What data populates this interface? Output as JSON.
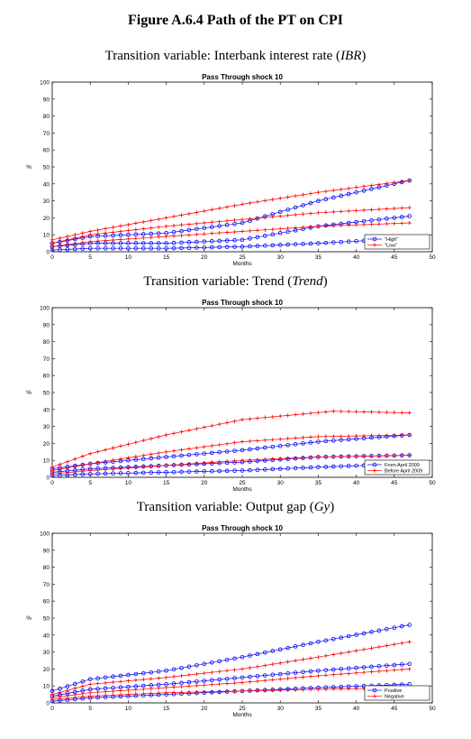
{
  "figure": {
    "title": "Figure A.6.4 Path of the PT on CPI",
    "panels": [
      {
        "subtitle_prefix": "Transition variable: Interbank interest rate (",
        "subtitle_var": "IBR",
        "subtitle_suffix": ")"
      },
      {
        "subtitle_prefix": "Transition variable: Trend (",
        "subtitle_var": "Trend",
        "subtitle_suffix": ")"
      },
      {
        "subtitle_prefix": "Transition variable: Output gap (",
        "subtitle_var": "Gy",
        "subtitle_suffix": ")"
      }
    ]
  },
  "colors": {
    "blue": "#0000ff",
    "red": "#ff0000",
    "axis": "#000000"
  },
  "chart_data": [
    {
      "type": "line",
      "title": "Pass Through shock 10",
      "xlabel": "Months",
      "ylabel": "%",
      "xlim": [
        0,
        50
      ],
      "ylim": [
        0,
        100
      ],
      "xticks": [
        0,
        5,
        10,
        15,
        20,
        25,
        30,
        35,
        40,
        45,
        50
      ],
      "yticks": [
        0,
        10,
        20,
        30,
        40,
        50,
        60,
        70,
        80,
        90,
        100
      ],
      "legend_position": "bottom-right",
      "legend": [
        {
          "name": "\"High\"",
          "color": "blue",
          "marker": "o"
        },
        {
          "name": "\"Low\"",
          "color": "red",
          "marker": "+"
        }
      ],
      "series": [
        {
          "group": "\"High\"",
          "color": "blue",
          "marker": "o",
          "anchors": [
            [
              0,
              5
            ],
            [
              5,
              9
            ],
            [
              15,
              11
            ],
            [
              25,
              17
            ],
            [
              35,
              30
            ],
            [
              47,
              42
            ]
          ]
        },
        {
          "group": "\"High\"",
          "color": "blue",
          "marker": "o",
          "anchors": [
            [
              0,
              3
            ],
            [
              5,
              5
            ],
            [
              15,
              5
            ],
            [
              25,
              7
            ],
            [
              35,
              15
            ],
            [
              47,
              21
            ]
          ]
        },
        {
          "group": "\"High\"",
          "color": "blue",
          "marker": "o",
          "anchors": [
            [
              0,
              1
            ],
            [
              5,
              2
            ],
            [
              15,
              2
            ],
            [
              25,
              3
            ],
            [
              35,
              5
            ],
            [
              47,
              8
            ]
          ]
        },
        {
          "group": "\"Low\"",
          "color": "red",
          "marker": "+",
          "anchors": [
            [
              0,
              7
            ],
            [
              5,
              12
            ],
            [
              15,
              20
            ],
            [
              25,
              28
            ],
            [
              35,
              35
            ],
            [
              47,
              42
            ]
          ]
        },
        {
          "group": "\"Low\"",
          "color": "red",
          "marker": "+",
          "anchors": [
            [
              0,
              5
            ],
            [
              5,
              10
            ],
            [
              15,
              15
            ],
            [
              25,
              19
            ],
            [
              35,
              23
            ],
            [
              47,
              26
            ]
          ]
        },
        {
          "group": "\"Low\"",
          "color": "red",
          "marker": "+",
          "anchors": [
            [
              0,
              3
            ],
            [
              5,
              6
            ],
            [
              15,
              9
            ],
            [
              25,
              12
            ],
            [
              35,
              15
            ],
            [
              47,
              17
            ]
          ]
        }
      ]
    },
    {
      "type": "line",
      "title": "Pass Through shock 10",
      "xlabel": "Months",
      "ylabel": "%",
      "xlim": [
        0,
        50
      ],
      "ylim": [
        0,
        100
      ],
      "xticks": [
        0,
        5,
        10,
        15,
        20,
        25,
        30,
        35,
        40,
        45,
        50
      ],
      "yticks": [
        0,
        10,
        20,
        30,
        40,
        50,
        60,
        70,
        80,
        90,
        100
      ],
      "legend_position": "bottom-right",
      "legend": [
        {
          "name": "From April 2009",
          "color": "blue",
          "marker": "o"
        },
        {
          "name": "Before April 2009",
          "color": "red",
          "marker": "+"
        }
      ],
      "series": [
        {
          "group": "From April 2009",
          "color": "blue",
          "marker": "o",
          "anchors": [
            [
              0,
              5
            ],
            [
              5,
              8
            ],
            [
              15,
              12
            ],
            [
              25,
              16
            ],
            [
              35,
              21
            ],
            [
              47,
              25
            ]
          ]
        },
        {
          "group": "From April 2009",
          "color": "blue",
          "marker": "o",
          "anchors": [
            [
              0,
              3
            ],
            [
              5,
              5
            ],
            [
              15,
              7
            ],
            [
              25,
              9
            ],
            [
              35,
              12
            ],
            [
              47,
              13
            ]
          ]
        },
        {
          "group": "From April 2009",
          "color": "blue",
          "marker": "o",
          "anchors": [
            [
              0,
              1
            ],
            [
              5,
              2
            ],
            [
              15,
              3
            ],
            [
              25,
              4
            ],
            [
              35,
              6
            ],
            [
              47,
              8
            ]
          ]
        },
        {
          "group": "Before April 2009",
          "color": "red",
          "marker": "+",
          "anchors": [
            [
              0,
              6
            ],
            [
              5,
              14
            ],
            [
              15,
              25
            ],
            [
              25,
              34
            ],
            [
              37,
              39
            ],
            [
              47,
              38
            ]
          ]
        },
        {
          "group": "Before April 2009",
          "color": "red",
          "marker": "+",
          "anchors": [
            [
              0,
              4
            ],
            [
              5,
              8
            ],
            [
              15,
              15
            ],
            [
              25,
              21
            ],
            [
              35,
              24
            ],
            [
              47,
              25
            ]
          ]
        },
        {
          "group": "Before April 2009",
          "color": "red",
          "marker": "+",
          "anchors": [
            [
              0,
              2
            ],
            [
              5,
              4
            ],
            [
              15,
              7
            ],
            [
              25,
              10
            ],
            [
              35,
              12
            ],
            [
              47,
              13
            ]
          ]
        }
      ]
    },
    {
      "type": "line",
      "title": "Pass Through shock 10",
      "xlabel": "Months",
      "ylabel": "%",
      "xlim": [
        0,
        50
      ],
      "ylim": [
        0,
        100
      ],
      "xticks": [
        0,
        5,
        10,
        15,
        20,
        25,
        30,
        35,
        40,
        45,
        50
      ],
      "yticks": [
        0,
        10,
        20,
        30,
        40,
        50,
        60,
        70,
        80,
        90,
        100
      ],
      "legend_position": "bottom-right",
      "legend": [
        {
          "name": "Positive",
          "color": "blue",
          "marker": "o"
        },
        {
          "name": "Negative",
          "color": "red",
          "marker": "+"
        }
      ],
      "series": [
        {
          "group": "Positive",
          "color": "blue",
          "marker": "o",
          "anchors": [
            [
              0,
              7
            ],
            [
              5,
              14
            ],
            [
              15,
              19
            ],
            [
              25,
              27
            ],
            [
              35,
              36
            ],
            [
              47,
              46
            ]
          ]
        },
        {
          "group": "Positive",
          "color": "blue",
          "marker": "o",
          "anchors": [
            [
              0,
              4
            ],
            [
              5,
              8
            ],
            [
              15,
              11
            ],
            [
              25,
              15
            ],
            [
              35,
              19
            ],
            [
              47,
              23
            ]
          ]
        },
        {
          "group": "Positive",
          "color": "blue",
          "marker": "o",
          "anchors": [
            [
              0,
              1
            ],
            [
              5,
              3
            ],
            [
              15,
              5
            ],
            [
              25,
              7
            ],
            [
              35,
              9
            ],
            [
              47,
              11
            ]
          ]
        },
        {
          "group": "Negative",
          "color": "red",
          "marker": "+",
          "anchors": [
            [
              0,
              5
            ],
            [
              5,
              11
            ],
            [
              15,
              15
            ],
            [
              25,
              20
            ],
            [
              35,
              27
            ],
            [
              47,
              36
            ]
          ]
        },
        {
          "group": "Negative",
          "color": "red",
          "marker": "+",
          "anchors": [
            [
              0,
              3
            ],
            [
              5,
              6
            ],
            [
              15,
              9
            ],
            [
              25,
              12
            ],
            [
              35,
              16
            ],
            [
              47,
              20
            ]
          ]
        },
        {
          "group": "Negative",
          "color": "red",
          "marker": "+",
          "anchors": [
            [
              0,
              2
            ],
            [
              5,
              4
            ],
            [
              15,
              6
            ],
            [
              25,
              7
            ],
            [
              35,
              8
            ],
            [
              47,
              9
            ]
          ]
        }
      ]
    }
  ]
}
